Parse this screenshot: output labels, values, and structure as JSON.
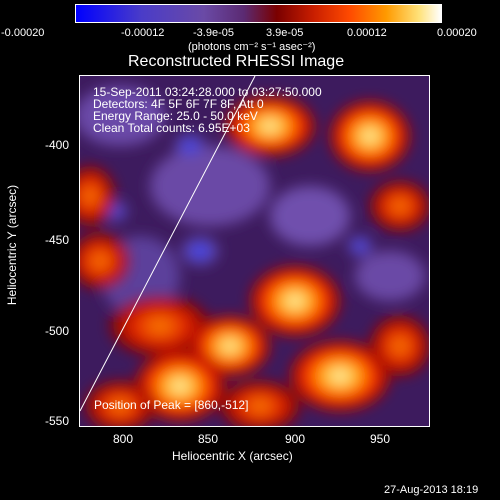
{
  "colorbar": {
    "ticks": [
      "-0.00020",
      "-0.00012",
      "-3.9e-05",
      "3.9e-05",
      "0.00012",
      "0.00020"
    ],
    "unit_label": "(photons cm⁻² s⁻¹ asec⁻²)"
  },
  "plot": {
    "title": "Reconstructed RHESSI Image",
    "info_lines": [
      "15-Sep-2011 03:24:28.000 to 03:27:50.000",
      "Detectors: 4F 5F 6F 7F 8F, Att 0",
      "Energy Range: 25.0 - 50.0 keV",
      "Clean    Total counts: 6.95E+03"
    ],
    "peak_label": "Position of Peak = [860,-512]",
    "xlabel": "Heliocentric X (arcsec)",
    "ylabel": "Heliocentric Y (arcsec)",
    "xticks": [
      "800",
      "850",
      "900",
      "950"
    ],
    "yticks": [
      "-400",
      "-450",
      "-500",
      "-550"
    ]
  },
  "footer_date": "27-Aug-2013 18:19",
  "colors": {
    "low": "#0000ff",
    "mid": "#5b2a72",
    "high": "#ffffff"
  }
}
